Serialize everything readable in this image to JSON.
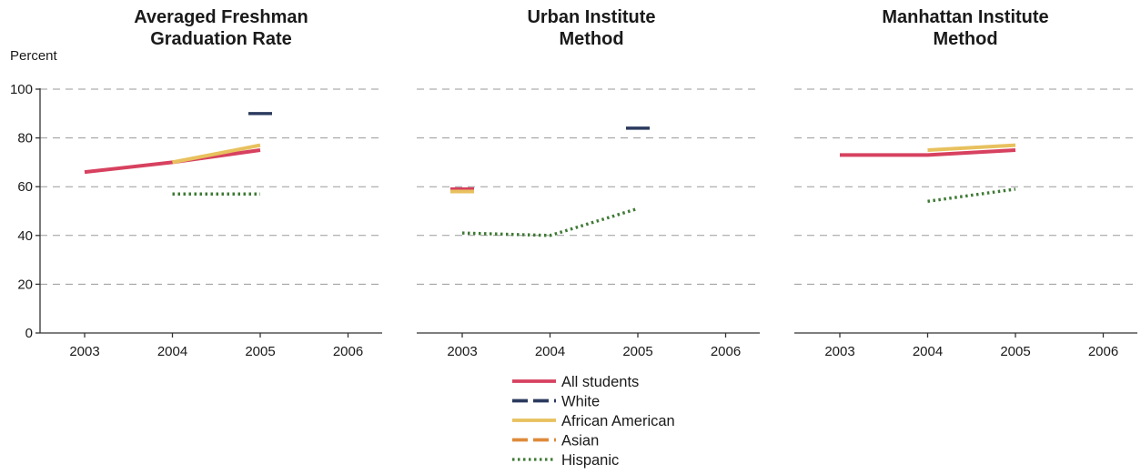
{
  "y_axis_label": "Percent",
  "colors": {
    "All students": "#d7415f",
    "White": "#2b3a5e",
    "African American": "#e8c15e",
    "Asian": "#de8a3a",
    "Hispanic": "#3f7a35"
  },
  "legend": [
    {
      "name": "All students",
      "dash": "solid"
    },
    {
      "name": "White",
      "dash": "dashed"
    },
    {
      "name": "African American",
      "dash": "solid"
    },
    {
      "name": "Asian",
      "dash": "dashed"
    },
    {
      "name": "Hispanic",
      "dash": "dotted"
    }
  ],
  "chart_data": [
    {
      "type": "line",
      "title": [
        "Averaged Freshman",
        "Graduation Rate"
      ],
      "x_ticks": [
        "2003",
        "2004",
        "2005",
        "2006"
      ],
      "ylim": [
        0,
        100
      ],
      "y_ticks": [
        "0",
        "20",
        "40",
        "60",
        "80",
        "100"
      ],
      "grid": true,
      "series": [
        {
          "name": "All students",
          "points": [
            [
              "2003",
              66
            ],
            [
              "2004",
              70
            ],
            [
              "2005",
              75
            ]
          ]
        },
        {
          "name": "White",
          "points": [
            [
              "2005",
              90
            ]
          ]
        },
        {
          "name": "African American",
          "points": [
            [
              "2004",
              70
            ],
            [
              "2005",
              77
            ]
          ]
        },
        {
          "name": "Hispanic",
          "points": [
            [
              "2004",
              57
            ],
            [
              "2005",
              57
            ]
          ]
        }
      ]
    },
    {
      "type": "line",
      "title": [
        "Urban Institute",
        "Method"
      ],
      "x_ticks": [
        "2003",
        "2004",
        "2005",
        "2006"
      ],
      "ylim": [
        0,
        100
      ],
      "y_ticks": [
        "0",
        "20",
        "40",
        "60",
        "80",
        "100"
      ],
      "grid": true,
      "series": [
        {
          "name": "All students",
          "points": [
            [
              "2003",
              59
            ]
          ]
        },
        {
          "name": "White",
          "points": [
            [
              "2005",
              84
            ]
          ]
        },
        {
          "name": "African American",
          "points": [
            [
              "2003",
              58
            ]
          ]
        },
        {
          "name": "Hispanic",
          "points": [
            [
              "2003",
              41
            ],
            [
              "2004",
              40
            ],
            [
              "2005",
              51
            ]
          ]
        }
      ]
    },
    {
      "type": "line",
      "title": [
        "Manhattan Institute",
        "Method"
      ],
      "x_ticks": [
        "2003",
        "2004",
        "2005",
        "2006"
      ],
      "ylim": [
        0,
        100
      ],
      "y_ticks": [
        "0",
        "20",
        "40",
        "60",
        "80",
        "100"
      ],
      "grid": true,
      "series": [
        {
          "name": "All students",
          "points": [
            [
              "2003",
              73
            ],
            [
              "2004",
              73
            ],
            [
              "2005",
              75
            ]
          ]
        },
        {
          "name": "African American",
          "points": [
            [
              "2004",
              75
            ],
            [
              "2005",
              77
            ]
          ]
        },
        {
          "name": "Hispanic",
          "points": [
            [
              "2004",
              54
            ],
            [
              "2005",
              59
            ]
          ]
        }
      ]
    }
  ]
}
